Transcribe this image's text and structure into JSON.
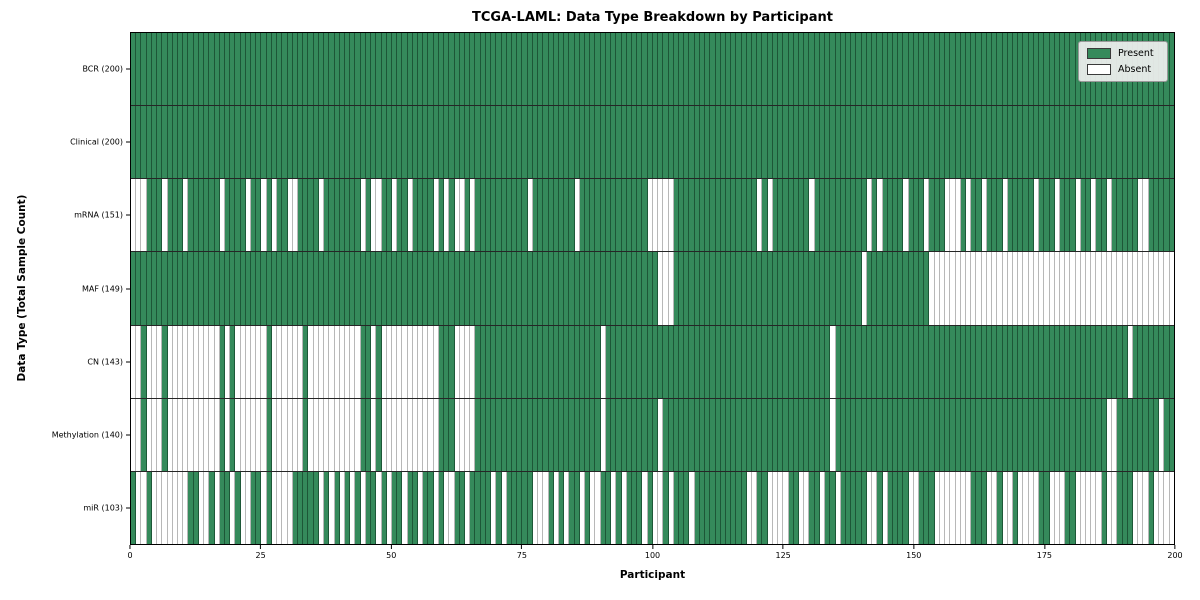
{
  "title": "TCGA-LAML: Data Type Breakdown by Participant",
  "axes": {
    "x_label": "Participant",
    "y_label": "Data Type (Total Sample Count)",
    "x_ticks": [
      0,
      25,
      50,
      75,
      100,
      125,
      150,
      175,
      200
    ],
    "x_range": [
      0,
      200
    ]
  },
  "legend": {
    "items": [
      {
        "label": "Present",
        "color": "#358a5b"
      },
      {
        "label": "Absent",
        "color": "#ffffff"
      }
    ]
  },
  "colors": {
    "present": "#358a5b",
    "absent": "#ffffff",
    "present_edge": "rgba(10,45,25,0.55)",
    "absent_edge": "rgba(0,0,0,0.28)",
    "row_divider": "rgba(0,0,0,0.85)",
    "legend_bg": "rgba(240,240,240,0.92)",
    "legend_border": "#999999"
  },
  "chart_data": {
    "type": "heatmap",
    "n_participants": 200,
    "x_label": "Participant",
    "y_label": "Data Type (Total Sample Count)",
    "x_ticks": [
      0,
      25,
      50,
      75,
      100,
      125,
      150,
      175,
      200
    ],
    "legend": [
      "Present",
      "Absent"
    ],
    "rows": [
      {
        "label": "BCR (200)",
        "data_type": "BCR",
        "present_count": 200,
        "bitmap": "11111111111111111111111111111111111111111111111111111111111111111111111111111111111111111111111111111111111111111111111111111111111111111111111111111111111111111111111111111111111111111111111111111111"
      },
      {
        "label": "Clinical (200)",
        "data_type": "Clinical",
        "present_count": 200,
        "bitmap": "11111111111111111111111111111111111111111111111111111111111111111111111111111111111111111111111111111111111111111111111111111111111111111111111111111111111111111111111111111111111111111111111111111111"
      },
      {
        "label": "mRNA (151)",
        "data_type": "mRNA",
        "present_count": 151,
        "bitmap": "00011101110111111011110110101100111101111111010011011011110101001011111111110111111110111111111111100000111111111111111101011111110111111111101011110111011100010110111011111011101110110110111110011111"
      },
      {
        "label": "MAF (149)",
        "data_type": "MAF",
        "present_count": 149,
        "bitmap": "11111111111111111111111111111111111111111111111111111111111111111111111111111111111111111111111111111000111111111111111111111111111111111111011111111111100000000000000000000000000000000000000000000000"
      },
      {
        "label": "CN (143)",
        "data_type": "CN",
        "present_count": 143,
        "bitmap": "00100010000000000101000000100000010000000000110100000000000111000011111111111111111111111101111111111111111111111111111111111111111111011111111111111111111111111111111111111111111111111111111011111111"
      },
      {
        "label": "Methylation (140)",
        "data_type": "Methylation",
        "present_count": 140,
        "bitmap": "00100010000000000101000000100000010000000000110100000000000111000011111111111111111111111101111111111011111111111111111111111111111111011111111111111111111111111111111111111111111111111110011111111011"
      },
      {
        "label": "miR (103)",
        "data_type": "miR",
        "present_count": 103,
        "bitmap": "10010000000110010110100110100001111101010101011010110110110100110111101011111000101011010011010111010010111011111111110011000011001101101111100101111001110000000111001001000011000110000010011100010000"
      }
    ]
  }
}
